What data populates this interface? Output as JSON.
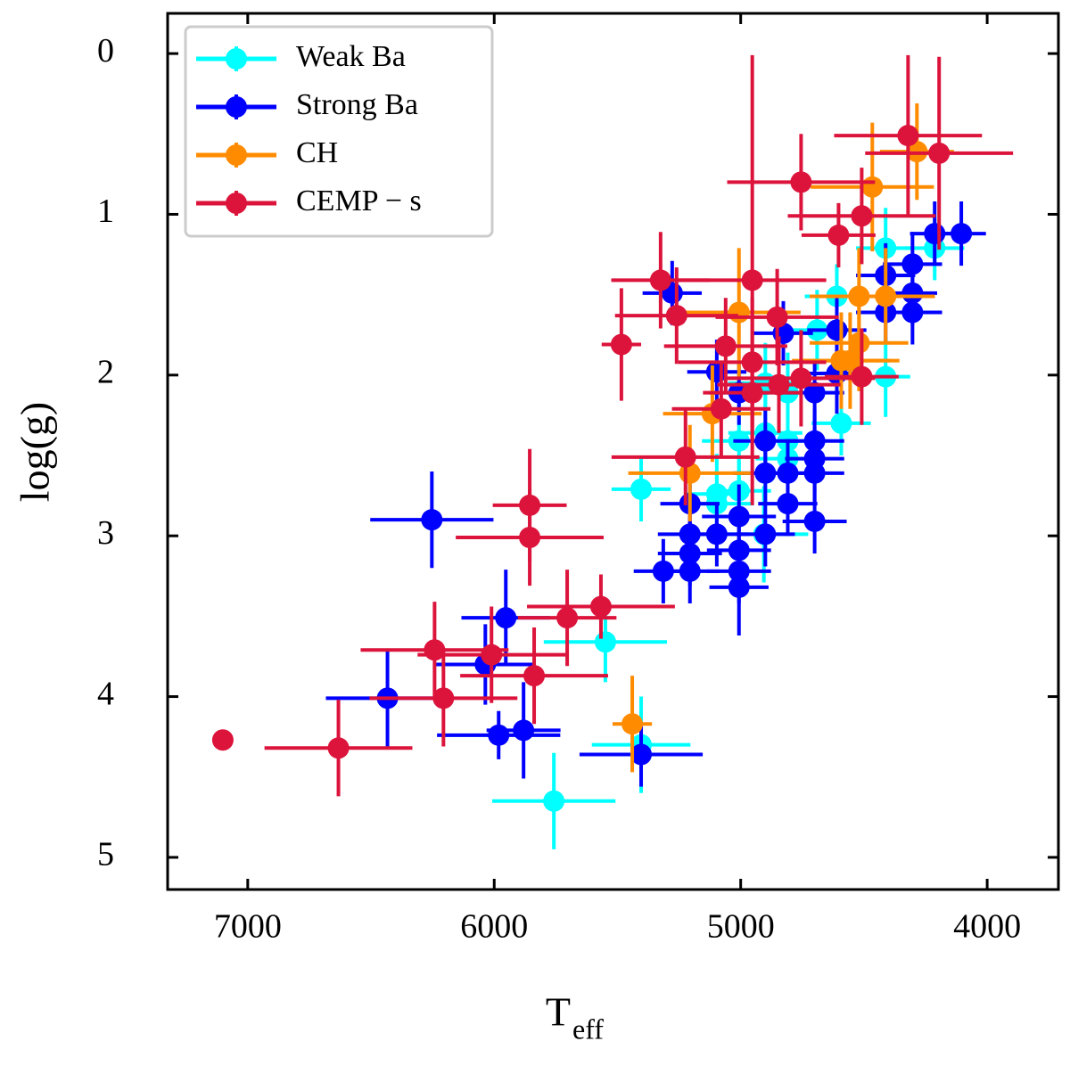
{
  "chart_data": {
    "type": "scatter",
    "xlabel": {
      "main": "T",
      "sub": "eff"
    },
    "ylabel": "log(g)",
    "xlim": [
      7325,
      3711
    ],
    "ylim": [
      -0.25,
      5.2
    ],
    "xticks": [
      7000,
      6000,
      5000,
      4000
    ],
    "yticks": [
      0,
      1,
      2,
      3,
      4,
      5
    ],
    "legend": "upper left",
    "series": [
      {
        "name": "Weak Ba",
        "color": "#00ffff",
        "x": [
          4213,
          4412,
          4412,
          4610,
          4592,
          4690,
          4809,
          4809,
          4809,
          4900,
          4900,
          5007,
          5007,
          5097,
          5097,
          4906,
          5404,
          5549,
          5404,
          5758,
          4900
        ],
        "values": [
          1.21,
          1.21,
          2.01,
          1.51,
          2.3,
          1.72,
          2.11,
          2.41,
          2.52,
          2.36,
          2.61,
          2.41,
          2.72,
          2.74,
          2.8,
          2.99,
          2.71,
          3.66,
          4.3,
          4.65,
          2.05
        ],
        "xerr": [
          120,
          120,
          100,
          130,
          120,
          150,
          120,
          150,
          130,
          150,
          130,
          150,
          130,
          130,
          150,
          180,
          120,
          250,
          200,
          250,
          150
        ],
        "yerr": [
          0.2,
          0.25,
          0.25,
          0.2,
          0.2,
          0.25,
          0.25,
          0.2,
          0.2,
          0.25,
          0.2,
          0.25,
          0.2,
          0.25,
          0.2,
          0.3,
          0.2,
          0.25,
          0.3,
          0.3,
          0.25
        ]
      },
      {
        "name": "Strong Ba",
        "color": "#0000ff",
        "x": [
          4105,
          4213,
          4303,
          4303,
          4303,
          4412,
          4412,
          4610,
          4610,
          4700,
          4700,
          4700,
          4700,
          4700,
          4809,
          4809,
          4900,
          4900,
          4900,
          5007,
          5007,
          5007,
          5007,
          5007,
          5097,
          5097,
          5206,
          5206,
          5206,
          5314,
          5206,
          6253,
          5953,
          6036,
          6433,
          5982,
          5881,
          5404,
          5278,
          4827
        ],
        "values": [
          1.12,
          1.12,
          1.31,
          1.49,
          1.61,
          1.38,
          1.61,
          1.72,
          1.99,
          2.11,
          2.41,
          2.52,
          2.61,
          2.91,
          2.8,
          2.61,
          2.41,
          2.61,
          2.99,
          2.11,
          2.88,
          3.09,
          3.22,
          3.32,
          2.99,
          1.98,
          2.99,
          3.11,
          3.22,
          3.22,
          2.8,
          2.9,
          3.51,
          3.8,
          4.01,
          4.24,
          4.21,
          4.36,
          1.49,
          1.74
        ],
        "xerr": [
          100,
          100,
          120,
          100,
          120,
          120,
          120,
          120,
          130,
          120,
          120,
          120,
          120,
          130,
          120,
          120,
          130,
          130,
          120,
          120,
          150,
          130,
          130,
          120,
          130,
          120,
          130,
          130,
          120,
          120,
          120,
          250,
          180,
          200,
          250,
          250,
          150,
          250,
          120,
          120
        ],
        "yerr": [
          0.2,
          0.2,
          0.2,
          0.2,
          0.2,
          0.2,
          0.2,
          0.2,
          0.25,
          0.2,
          0.2,
          0.2,
          0.2,
          0.2,
          0.2,
          0.2,
          0.2,
          0.2,
          0.2,
          0.2,
          0.2,
          0.2,
          0.2,
          0.3,
          0.2,
          0.2,
          0.2,
          0.2,
          0.2,
          0.2,
          0.2,
          0.3,
          0.3,
          0.25,
          0.3,
          0.15,
          0.3,
          0.2,
          0.2,
          0.2
        ]
      },
      {
        "name": "CH",
        "color": "#ff8c00",
        "x": [
          4285,
          4466,
          4520,
          4412,
          4520,
          4556,
          4592,
          5007,
          5115,
          5206,
          5440
        ],
        "values": [
          0.61,
          0.83,
          1.51,
          1.51,
          1.8,
          1.91,
          1.91,
          1.61,
          2.24,
          2.61,
          4.17
        ],
        "xerr": [
          150,
          250,
          200,
          200,
          200,
          200,
          200,
          250,
          200,
          250,
          80
        ],
        "yerr": [
          0.3,
          0.4,
          0.3,
          0.3,
          0.3,
          0.3,
          0.3,
          0.4,
          0.3,
          0.3,
          0.3
        ]
      },
      {
        "name": "CEMP − s",
        "color": "#dc143c",
        "x": [
          4321,
          4195,
          4755,
          4509,
          4603,
          4953,
          5325,
          5260,
          5484,
          4852,
          5061,
          4953,
          4755,
          4953,
          4845,
          5079,
          4509,
          5224,
          5856,
          5856,
          5704,
          5567,
          6242,
          6011,
          5838,
          6206,
          6632,
          7101
        ],
        "values": [
          0.51,
          0.62,
          0.8,
          1.01,
          1.13,
          1.41,
          1.41,
          1.63,
          1.81,
          1.64,
          1.82,
          1.92,
          2.02,
          2.11,
          2.06,
          2.21,
          2.01,
          2.51,
          2.81,
          3.01,
          3.51,
          3.44,
          3.71,
          3.74,
          3.87,
          4.01,
          4.32,
          4.27
        ],
        "xerr": [
          300,
          300,
          300,
          300,
          150,
          300,
          200,
          250,
          80,
          250,
          250,
          300,
          300,
          200,
          250,
          200,
          150,
          300,
          150,
          300,
          200,
          300,
          300,
          300,
          300,
          300,
          300,
          null
        ],
        "yerr": [
          0.5,
          0.6,
          0.3,
          0.3,
          0.2,
          1.4,
          0.3,
          0.3,
          0.35,
          0.3,
          0.3,
          0.4,
          0.3,
          0.3,
          0.3,
          0.3,
          0.3,
          0.3,
          0.35,
          0.3,
          0.3,
          0.2,
          0.3,
          0.3,
          0.3,
          0.3,
          0.3,
          null
        ]
      }
    ]
  }
}
